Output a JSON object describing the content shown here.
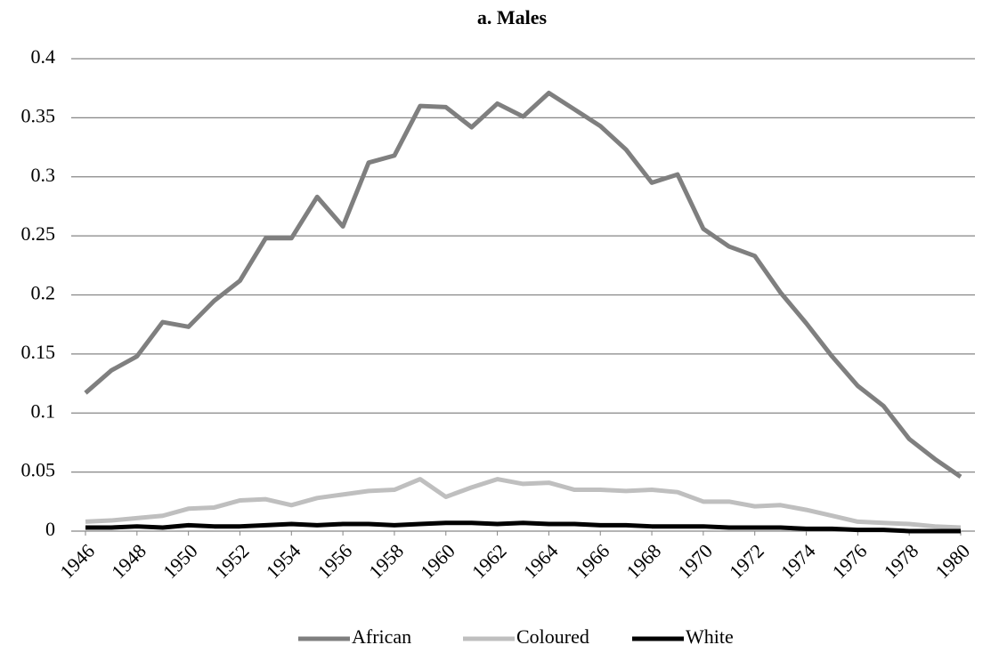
{
  "chart_data": {
    "type": "line",
    "title": "a. Males",
    "x": [
      1946,
      1947,
      1948,
      1949,
      1950,
      1951,
      1952,
      1953,
      1954,
      1955,
      1956,
      1957,
      1958,
      1959,
      1960,
      1961,
      1962,
      1963,
      1964,
      1965,
      1966,
      1967,
      1968,
      1969,
      1970,
      1971,
      1972,
      1973,
      1974,
      1975,
      1976,
      1977,
      1978,
      1979,
      1980
    ],
    "xlim": [
      1946,
      1980
    ],
    "xticks": [
      1946,
      1948,
      1950,
      1952,
      1954,
      1956,
      1958,
      1960,
      1962,
      1964,
      1966,
      1968,
      1970,
      1972,
      1974,
      1976,
      1978,
      1980
    ],
    "ylim": [
      0,
      0.4
    ],
    "yticks": [
      0,
      0.05,
      0.1,
      0.15,
      0.2,
      0.25,
      0.3,
      0.35,
      0.4
    ],
    "grid": true,
    "legend": "bottom",
    "series": [
      {
        "name": "African",
        "color": "#7f7f7f",
        "values": [
          0.117,
          0.136,
          0.148,
          0.177,
          0.173,
          0.195,
          0.212,
          0.248,
          0.248,
          0.283,
          0.258,
          0.312,
          0.318,
          0.36,
          0.359,
          0.342,
          0.362,
          0.351,
          0.371,
          0.357,
          0.343,
          0.323,
          0.295,
          0.302,
          0.256,
          0.241,
          0.233,
          0.202,
          0.176,
          0.148,
          0.123,
          0.106,
          0.078,
          0.061,
          0.046
        ]
      },
      {
        "name": "Coloured",
        "color": "#bfbfbf",
        "values": [
          0.008,
          0.009,
          0.011,
          0.013,
          0.019,
          0.02,
          0.026,
          0.027,
          0.022,
          0.028,
          0.031,
          0.034,
          0.035,
          0.044,
          0.029,
          0.037,
          0.044,
          0.04,
          0.041,
          0.035,
          0.035,
          0.034,
          0.035,
          0.033,
          0.025,
          0.025,
          0.021,
          0.022,
          0.018,
          0.013,
          0.008,
          0.007,
          0.006,
          0.004,
          0.003
        ]
      },
      {
        "name": "White",
        "color": "#000000",
        "values": [
          0.003,
          0.003,
          0.004,
          0.003,
          0.005,
          0.004,
          0.004,
          0.005,
          0.006,
          0.005,
          0.006,
          0.006,
          0.005,
          0.006,
          0.007,
          0.007,
          0.006,
          0.007,
          0.006,
          0.006,
          0.005,
          0.005,
          0.004,
          0.004,
          0.004,
          0.003,
          0.003,
          0.003,
          0.002,
          0.002,
          0.001,
          0.001,
          0,
          0,
          0
        ]
      }
    ]
  }
}
